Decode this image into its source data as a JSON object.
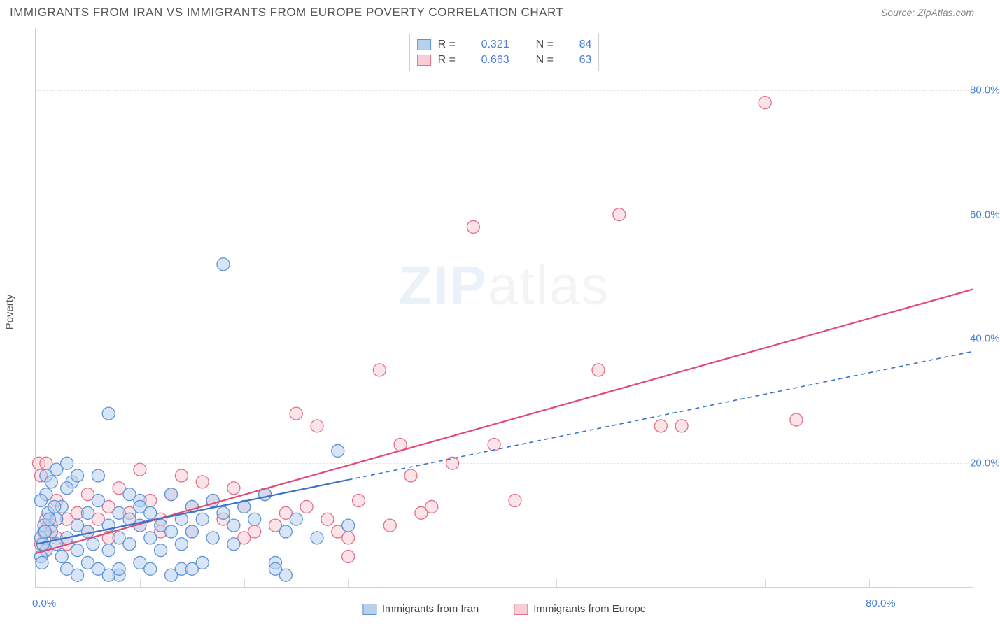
{
  "header": {
    "title": "IMMIGRANTS FROM IRAN VS IMMIGRANTS FROM EUROPE POVERTY CORRELATION CHART",
    "source_prefix": "Source: ",
    "source": "ZipAtlas.com"
  },
  "watermark": {
    "bold": "ZIP",
    "light": "atlas"
  },
  "chart": {
    "ylabel": "Poverty",
    "xlim": [
      0,
      90
    ],
    "ylim": [
      0,
      90
    ],
    "yticks": [
      {
        "v": 20,
        "label": "20.0%"
      },
      {
        "v": 40,
        "label": "40.0%"
      },
      {
        "v": 60,
        "label": "60.0%"
      },
      {
        "v": 80,
        "label": "80.0%"
      }
    ],
    "xticks_major": [
      {
        "v": 0,
        "label": "0.0%"
      },
      {
        "v": 80,
        "label": "80.0%"
      }
    ],
    "xticks_minor": [
      10,
      20,
      30,
      40,
      50,
      60,
      70,
      80
    ],
    "background_color": "#ffffff",
    "grid_color": "#e4e4e4",
    "axis_tick_label_color": "#4a7fd8"
  },
  "series": {
    "iran": {
      "label": "Immigrants from Iran",
      "fill": "#b8d0ee",
      "stroke": "#5f94d6",
      "line_color": "#3b72c9",
      "line_dash": "6,5",
      "R": "0.321",
      "N": "84",
      "trend": {
        "x1": 0,
        "y1": 7,
        "x2": 90,
        "y2": 38,
        "solid_until_x": 30
      },
      "points": [
        [
          0.5,
          8
        ],
        [
          0.8,
          10
        ],
        [
          1,
          6
        ],
        [
          1.2,
          12
        ],
        [
          1,
          15
        ],
        [
          1.5,
          9
        ],
        [
          2,
          7
        ],
        [
          2,
          11
        ],
        [
          2.5,
          5
        ],
        [
          2.5,
          13
        ],
        [
          3,
          3
        ],
        [
          3,
          8
        ],
        [
          3.5,
          17
        ],
        [
          4,
          10
        ],
        [
          4,
          6
        ],
        [
          4,
          2
        ],
        [
          5,
          9
        ],
        [
          5,
          12
        ],
        [
          5,
          4
        ],
        [
          5.5,
          7
        ],
        [
          6,
          14
        ],
        [
          6,
          18
        ],
        [
          6,
          3
        ],
        [
          7,
          10
        ],
        [
          7,
          6
        ],
        [
          7,
          28
        ],
        [
          8,
          8
        ],
        [
          8,
          12
        ],
        [
          8,
          2
        ],
        [
          9,
          7
        ],
        [
          9,
          15
        ],
        [
          10,
          10
        ],
        [
          10,
          4
        ],
        [
          10,
          14
        ],
        [
          11,
          8
        ],
        [
          11,
          12
        ],
        [
          12,
          6
        ],
        [
          12,
          10
        ],
        [
          13,
          9
        ],
        [
          13,
          15
        ],
        [
          14,
          11
        ],
        [
          14,
          7
        ],
        [
          15,
          13
        ],
        [
          15,
          9
        ],
        [
          16,
          11
        ],
        [
          17,
          8
        ],
        [
          17,
          14
        ],
        [
          18,
          12
        ],
        [
          18,
          52
        ],
        [
          19,
          10
        ],
        [
          19,
          7
        ],
        [
          20,
          13
        ],
        [
          21,
          11
        ],
        [
          22,
          15
        ],
        [
          23,
          4
        ],
        [
          23,
          3
        ],
        [
          24,
          9
        ],
        [
          24,
          2
        ],
        [
          25,
          11
        ],
        [
          7,
          2
        ],
        [
          8,
          3
        ],
        [
          14,
          3
        ],
        [
          16,
          4
        ],
        [
          2,
          19
        ],
        [
          3,
          20
        ],
        [
          4,
          18
        ],
        [
          3,
          16
        ],
        [
          29,
          22
        ],
        [
          11,
          3
        ],
        [
          13,
          2
        ],
        [
          15,
          3
        ],
        [
          0.5,
          14
        ],
        [
          1,
          18
        ],
        [
          1.5,
          17
        ],
        [
          0.7,
          7
        ],
        [
          0.9,
          9
        ],
        [
          1.3,
          11
        ],
        [
          1.8,
          13
        ],
        [
          0.5,
          5
        ],
        [
          0.6,
          4
        ],
        [
          9,
          11
        ],
        [
          10,
          13
        ],
        [
          30,
          10
        ],
        [
          27,
          8
        ]
      ]
    },
    "europe": {
      "label": "Immigrants from Europe",
      "fill": "#f7cdd6",
      "stroke": "#e36f8b",
      "line_color": "#e24a72",
      "line_dash": "",
      "R": "0.663",
      "N": "63",
      "trend": {
        "x1": 0,
        "y1": 5.5,
        "x2": 90,
        "y2": 48
      },
      "points": [
        [
          0.5,
          7
        ],
        [
          0.8,
          9
        ],
        [
          1,
          11
        ],
        [
          1,
          6
        ],
        [
          1.5,
          10
        ],
        [
          2,
          8
        ],
        [
          2,
          14
        ],
        [
          3,
          11
        ],
        [
          3,
          7
        ],
        [
          4,
          12
        ],
        [
          5,
          9
        ],
        [
          5,
          15
        ],
        [
          6,
          11
        ],
        [
          7,
          13
        ],
        [
          7,
          8
        ],
        [
          8,
          16
        ],
        [
          9,
          12
        ],
        [
          10,
          10
        ],
        [
          10,
          19
        ],
        [
          11,
          14
        ],
        [
          12,
          11
        ],
        [
          12,
          9
        ],
        [
          13,
          15
        ],
        [
          14,
          18
        ],
        [
          15,
          13
        ],
        [
          15,
          9
        ],
        [
          16,
          17
        ],
        [
          17,
          14
        ],
        [
          18,
          11
        ],
        [
          19,
          16
        ],
        [
          20,
          13
        ],
        [
          20,
          8
        ],
        [
          21,
          9
        ],
        [
          22,
          15
        ],
        [
          23,
          10
        ],
        [
          24,
          12
        ],
        [
          25,
          28
        ],
        [
          26,
          13
        ],
        [
          27,
          26
        ],
        [
          28,
          11
        ],
        [
          29,
          9
        ],
        [
          30,
          5
        ],
        [
          30,
          8
        ],
        [
          31,
          14
        ],
        [
          33,
          35
        ],
        [
          34,
          10
        ],
        [
          35,
          23
        ],
        [
          36,
          18
        ],
        [
          37,
          12
        ],
        [
          38,
          13
        ],
        [
          40,
          20
        ],
        [
          42,
          58
        ],
        [
          44,
          23
        ],
        [
          46,
          14
        ],
        [
          54,
          35
        ],
        [
          60,
          26
        ],
        [
          56,
          60
        ],
        [
          62,
          26
        ],
        [
          70,
          78
        ],
        [
          73,
          27
        ],
        [
          0.3,
          20
        ],
        [
          0.5,
          18
        ],
        [
          1,
          20
        ]
      ]
    }
  },
  "legend_top": {
    "r_label": "R =",
    "n_label": "N ="
  }
}
